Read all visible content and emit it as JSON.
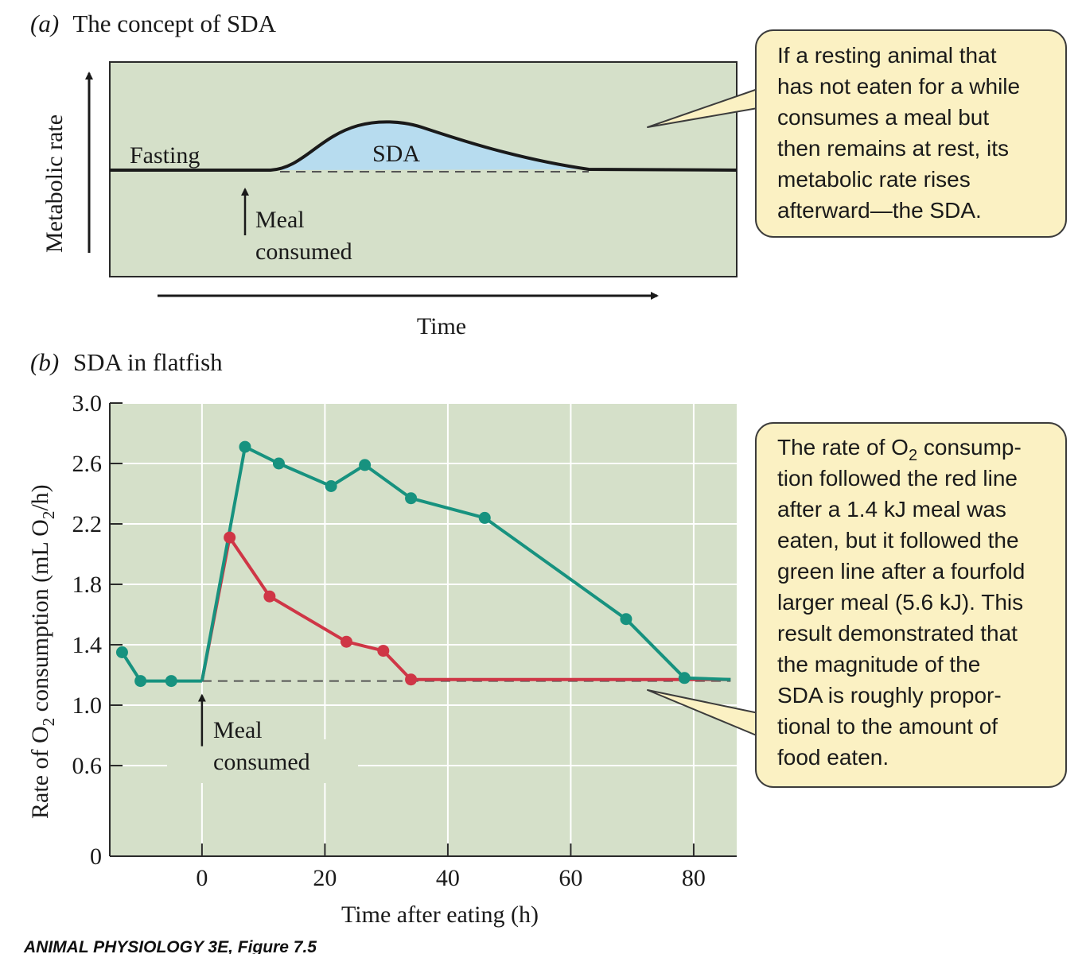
{
  "figure_caption": "ANIMAL PHYSIOLOGY 3E, Figure 7.5",
  "colors": {
    "panel_bg": "#d5e0c9",
    "sda_fill": "#b7dcef",
    "green_series": "#17927f",
    "red_series": "#cf3646",
    "callout_bg": "#fbf1c3",
    "callout_border": "#3c3c3c"
  },
  "chart_data": [
    {
      "type": "area",
      "panel_letter": "(a)",
      "title": "The concept of SDA",
      "xlabel": "Time",
      "ylabel": "Metabolic rate",
      "labels": {
        "fasting": "Fasting",
        "sda": "SDA"
      },
      "annotation": {
        "line1": "Meal",
        "line2": "consumed"
      },
      "callout": [
        "If a resting animal that",
        "has not eaten for a while",
        "consumes a meal but",
        "then remains at rest, its",
        "metabolic rate rises",
        "afterward—the SDA."
      ]
    },
    {
      "type": "line",
      "panel_letter": "(b)",
      "title": "SDA in flatfish",
      "xlabel": "Time after eating (h)",
      "ylabel": {
        "pre": "Rate of O",
        "sub": "2",
        "mid": " consumption (mL O",
        "sub2": "2",
        "post": "/h)"
      },
      "xlim": [
        -15,
        87
      ],
      "ylim": [
        0,
        3.0
      ],
      "x_ticks": [
        0,
        20,
        40,
        60,
        80
      ],
      "y_ticks": [
        0,
        0.6,
        1.0,
        1.4,
        1.8,
        2.2,
        2.6,
        3.0
      ],
      "y_tick_labels": [
        "0",
        "0.6",
        "1.0",
        "1.4",
        "1.8",
        "2.2",
        "2.6",
        "3.0"
      ],
      "baseline": 1.16,
      "annotation": {
        "line1": "Meal",
        "line2": "consumed",
        "x": 0
      },
      "fasting_points": [
        {
          "x": -13,
          "y": 1.35
        },
        {
          "x": -10,
          "y": 1.16
        },
        {
          "x": -5,
          "y": 1.16
        }
      ],
      "series": [
        {
          "color": "green",
          "points": [
            {
              "x": 7,
              "y": 2.71
            },
            {
              "x": 12.5,
              "y": 2.6
            },
            {
              "x": 21,
              "y": 2.45
            },
            {
              "x": 26.5,
              "y": 2.59
            },
            {
              "x": 34,
              "y": 2.37
            },
            {
              "x": 46,
              "y": 2.24
            },
            {
              "x": 69,
              "y": 1.57
            },
            {
              "x": 78.5,
              "y": 1.18
            }
          ],
          "end": {
            "x": 86,
            "y": 1.17
          }
        },
        {
          "color": "red",
          "points": [
            {
              "x": 4.5,
              "y": 2.11
            },
            {
              "x": 11,
              "y": 1.72
            },
            {
              "x": 23.5,
              "y": 1.42
            },
            {
              "x": 29.5,
              "y": 1.36
            },
            {
              "x": 34,
              "y": 1.17
            }
          ],
          "end": {
            "x": 86,
            "y": 1.17
          }
        }
      ],
      "callout": {
        "l1_pre": "The rate of O",
        "l1_sub": "2",
        "l1_post": " consump-",
        "rest": [
          "tion followed the red line",
          "after a 1.4 kJ meal was",
          "eaten, but it followed the",
          "green line after a fourfold",
          "larger meal (5.6 kJ). This",
          "result demonstrated that",
          "the magnitude of the",
          "SDA is roughly propor-",
          "tional to the amount of",
          "food eaten."
        ]
      }
    }
  ]
}
